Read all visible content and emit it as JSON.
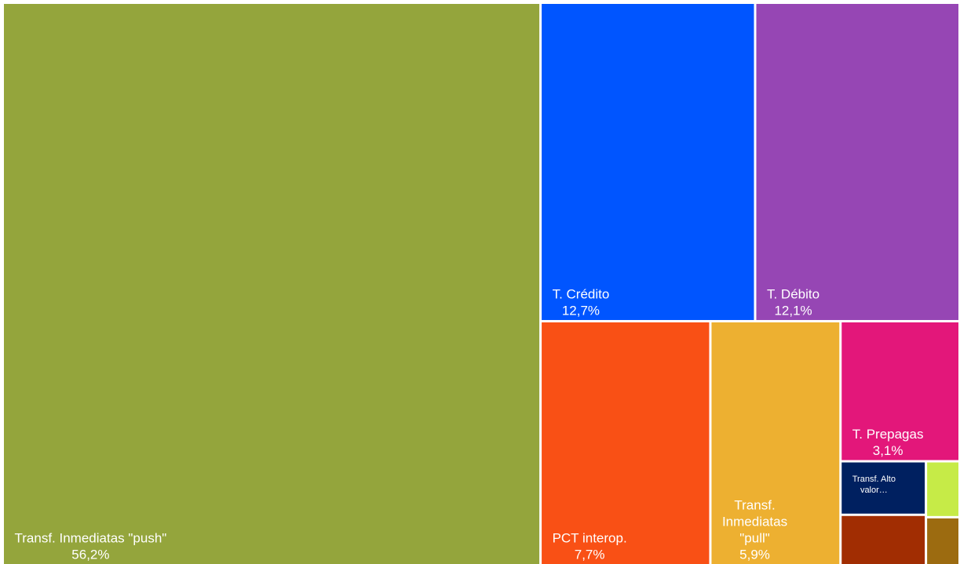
{
  "chart_data": {
    "type": "treemap",
    "categories": [
      "Transf. Inmediatas \"push\"",
      "T. Crédito",
      "T. Débito",
      "PCT interop.",
      "Transf. Inmediatas \"pull\"",
      "T. Prepagas",
      "Transf. Alto valor…",
      null,
      null,
      null
    ],
    "values": [
      56.2,
      12.7,
      12.1,
      7.7,
      5.9,
      3.1,
      0.85,
      0.35,
      0.8,
      0.3
    ],
    "value_labels": [
      "56,2%",
      "12,7%",
      "12,1%",
      "7,7%",
      "5,9%",
      "3,1%",
      null,
      null,
      null,
      null
    ],
    "colors": [
      "#94a53c",
      "#0055ff",
      "#9646b4",
      "#f95015",
      "#edb031",
      "#e3177a",
      "#002060",
      "#c6eb47",
      "#a12d02",
      "#9c6b10"
    ]
  }
}
